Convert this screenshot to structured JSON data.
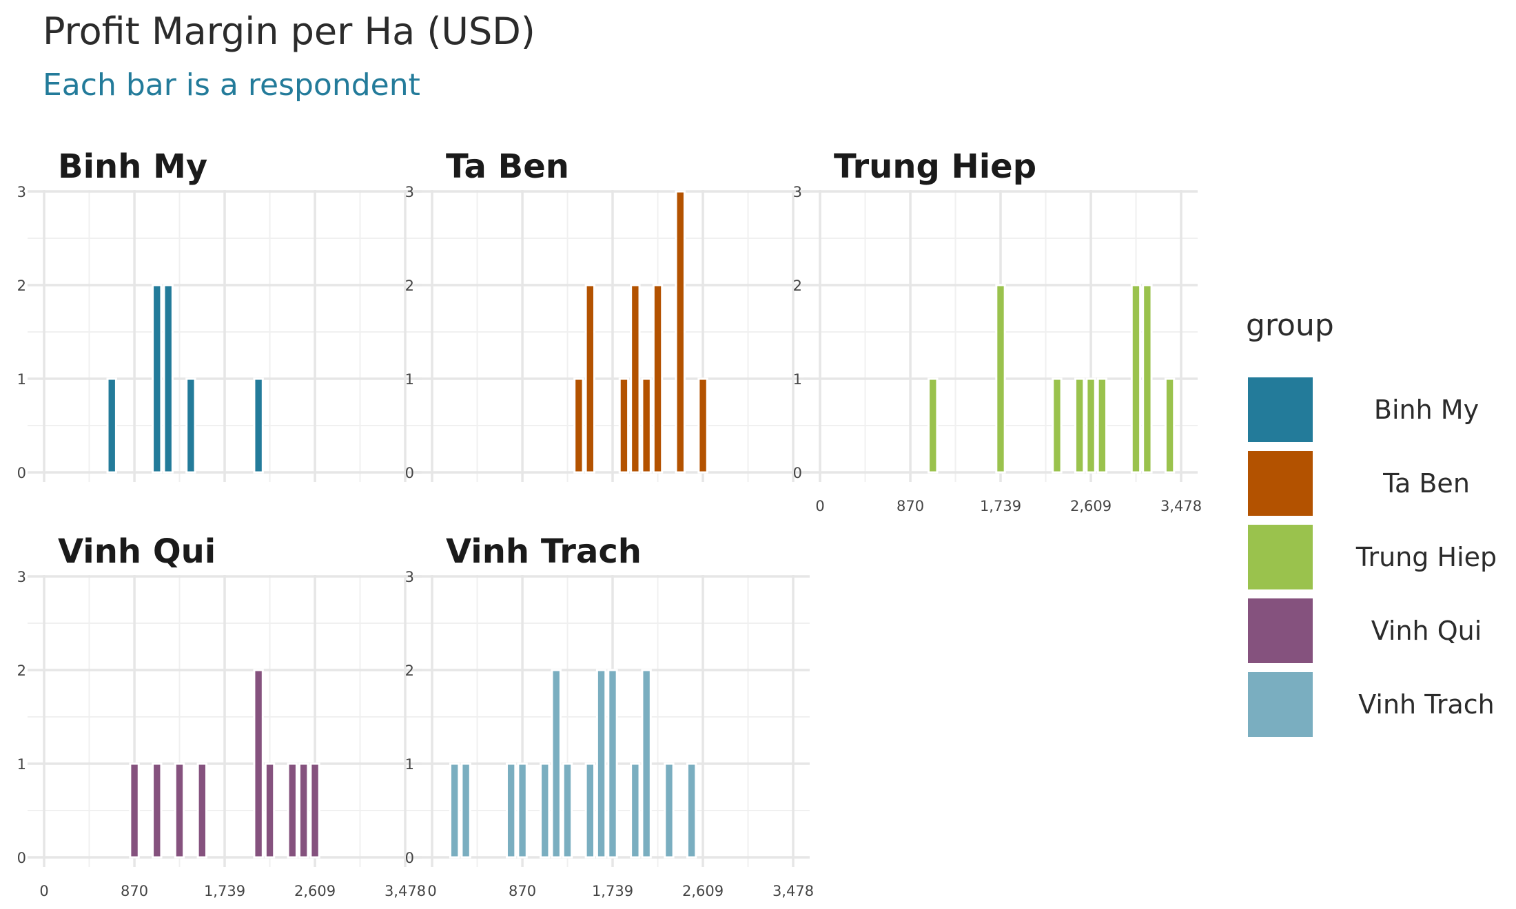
{
  "chart_data": {
    "type": "bar",
    "title": "Profit Margin per Ha (USD)",
    "subtitle": "Each bar is a respondent",
    "x_ticks": [
      "0",
      "870",
      "1,739",
      "2,609",
      "3,478"
    ],
    "y_ticks": [
      "0",
      "1",
      "2",
      "3"
    ],
    "xlim": [
      0,
      3478
    ],
    "ylim": [
      0,
      3
    ],
    "grid": true,
    "legend": {
      "title": "group",
      "position": "right",
      "items": [
        {
          "label": "Binh My",
          "color": "#237b9a"
        },
        {
          "label": "Ta Ben",
          "color": "#b35200"
        },
        {
          "label": "Trung Hiep",
          "color": "#9ac24d"
        },
        {
          "label": "Vinh Qui",
          "color": "#85527e"
        },
        {
          "label": "Vinh Trach",
          "color": "#7aaec0"
        }
      ]
    },
    "panels": [
      {
        "name": "Binh My",
        "color": "#237b9a",
        "bars": [
          {
            "x": 652,
            "y": 1
          },
          {
            "x": 1087,
            "y": 2
          },
          {
            "x": 1196,
            "y": 2
          },
          {
            "x": 1413,
            "y": 1
          },
          {
            "x": 2065,
            "y": 1
          }
        ]
      },
      {
        "name": "Ta Ben",
        "color": "#b35200",
        "bars": [
          {
            "x": 1413,
            "y": 1
          },
          {
            "x": 1522,
            "y": 2
          },
          {
            "x": 1848,
            "y": 1
          },
          {
            "x": 1957,
            "y": 2
          },
          {
            "x": 2065,
            "y": 1
          },
          {
            "x": 2174,
            "y": 2
          },
          {
            "x": 2391,
            "y": 3
          },
          {
            "x": 2609,
            "y": 1
          }
        ]
      },
      {
        "name": "Trung Hiep",
        "color": "#9ac24d",
        "bars": [
          {
            "x": 1087,
            "y": 1
          },
          {
            "x": 1739,
            "y": 2
          },
          {
            "x": 2283,
            "y": 1
          },
          {
            "x": 2500,
            "y": 1
          },
          {
            "x": 2609,
            "y": 1
          },
          {
            "x": 2717,
            "y": 1
          },
          {
            "x": 3043,
            "y": 2
          },
          {
            "x": 3152,
            "y": 2
          },
          {
            "x": 3369,
            "y": 1
          }
        ]
      },
      {
        "name": "Vinh Qui",
        "color": "#85527e",
        "bars": [
          {
            "x": 870,
            "y": 1
          },
          {
            "x": 1087,
            "y": 1
          },
          {
            "x": 1304,
            "y": 1
          },
          {
            "x": 1522,
            "y": 1
          },
          {
            "x": 2065,
            "y": 2
          },
          {
            "x": 2174,
            "y": 1
          },
          {
            "x": 2391,
            "y": 1
          },
          {
            "x": 2500,
            "y": 1
          },
          {
            "x": 2609,
            "y": 1
          }
        ]
      },
      {
        "name": "Vinh Trach",
        "color": "#7aaec0",
        "bars": [
          {
            "x": 217,
            "y": 1
          },
          {
            "x": 326,
            "y": 1
          },
          {
            "x": 761,
            "y": 1
          },
          {
            "x": 870,
            "y": 1
          },
          {
            "x": 1087,
            "y": 1
          },
          {
            "x": 1196,
            "y": 2
          },
          {
            "x": 1304,
            "y": 1
          },
          {
            "x": 1522,
            "y": 1
          },
          {
            "x": 1630,
            "y": 2
          },
          {
            "x": 1739,
            "y": 2
          },
          {
            "x": 1957,
            "y": 1
          },
          {
            "x": 2065,
            "y": 2
          },
          {
            "x": 2283,
            "y": 1
          },
          {
            "x": 2500,
            "y": 1
          }
        ]
      }
    ]
  }
}
